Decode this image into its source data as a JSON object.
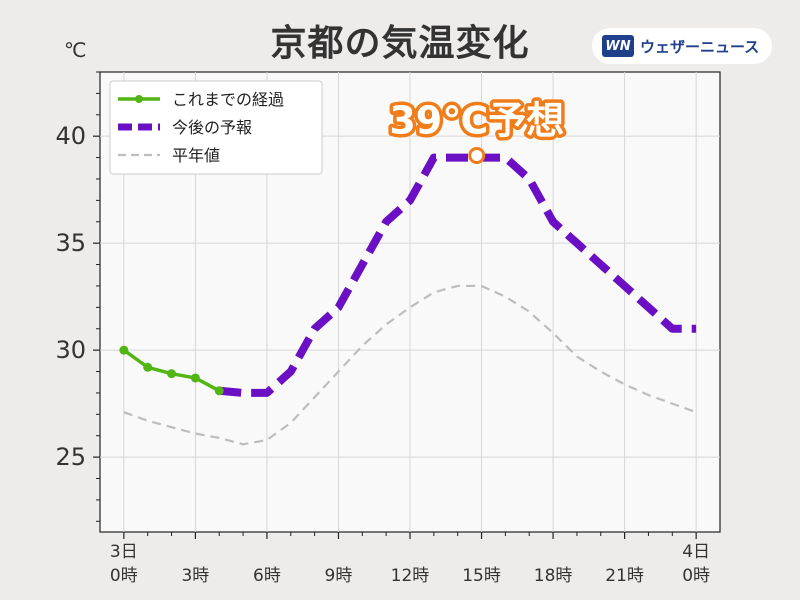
{
  "header": {
    "title": "京都の気温変化",
    "unit": "℃",
    "brand_mark": "WN",
    "brand_name": "ウェザーニュース"
  },
  "annotation": {
    "text": "39℃予想",
    "x": 14.8,
    "y": 39.1
  },
  "chart_data": {
    "type": "line",
    "ylim": [
      21.5,
      43
    ],
    "xlim": [
      -1,
      25
    ],
    "yticks": [
      25,
      30,
      35,
      40
    ],
    "x_tick_labels": [
      {
        "x": 0,
        "line1": "3日",
        "line2": "0時"
      },
      {
        "x": 3,
        "line1": "",
        "line2": "3時"
      },
      {
        "x": 6,
        "line1": "",
        "line2": "6時"
      },
      {
        "x": 9,
        "line1": "",
        "line2": "9時"
      },
      {
        "x": 12,
        "line1": "",
        "line2": "12時"
      },
      {
        "x": 15,
        "line1": "",
        "line2": "15時"
      },
      {
        "x": 18,
        "line1": "",
        "line2": "18時"
      },
      {
        "x": 21,
        "line1": "",
        "line2": "21時"
      },
      {
        "x": 24,
        "line1": "4日",
        "line2": "0時"
      }
    ],
    "grid": true,
    "legend_position": "top-left",
    "series": [
      {
        "name": "これまでの経過",
        "color": "#52b515",
        "style": "solid-markers",
        "x": [
          0,
          1,
          2,
          3,
          4
        ],
        "y": [
          30.0,
          29.2,
          28.9,
          28.7,
          28.1
        ]
      },
      {
        "name": "今後の予報",
        "color": "#6a0fc4",
        "style": "dashed-thick",
        "x": [
          4,
          5,
          6,
          7,
          8,
          9,
          10,
          11,
          12,
          13,
          14,
          15,
          16,
          17,
          18,
          19,
          20,
          21,
          22,
          23,
          24
        ],
        "y": [
          28.1,
          28.0,
          28.0,
          29.0,
          31.0,
          32.0,
          34.0,
          36.0,
          37.0,
          39.0,
          39.0,
          39.0,
          39.0,
          38.0,
          36.0,
          35.0,
          34.0,
          33.0,
          32.0,
          31.0,
          31.0
        ]
      },
      {
        "name": "平年値",
        "color": "#bdbdbd",
        "style": "dashed-thin",
        "x": [
          0,
          1,
          2,
          3,
          4,
          5,
          6,
          7,
          8,
          9,
          10,
          11,
          12,
          13,
          14,
          15,
          16,
          17,
          18,
          19,
          20,
          21,
          22,
          23,
          24
        ],
        "y": [
          27.1,
          26.7,
          26.4,
          26.1,
          25.9,
          25.6,
          25.8,
          26.6,
          27.8,
          29.0,
          30.2,
          31.2,
          32.0,
          32.7,
          33.0,
          33.0,
          32.5,
          31.8,
          30.8,
          29.7,
          29.0,
          28.4,
          27.9,
          27.5,
          27.1
        ]
      }
    ]
  }
}
